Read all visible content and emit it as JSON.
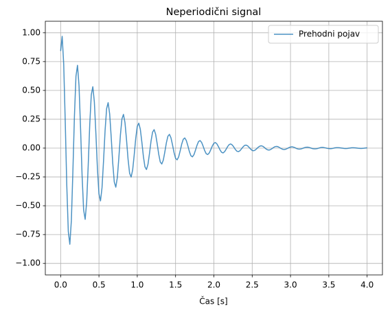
{
  "chart_data": {
    "type": "line",
    "title": "Neperiodični signal",
    "xlabel": "Čas [s]",
    "x": [
      0,
      0.02,
      0.04,
      0.06,
      0.08,
      0.1,
      0.12,
      0.14,
      0.16,
      0.18,
      0.2,
      0.22,
      0.24,
      0.26,
      0.28,
      0.3,
      0.32,
      0.34,
      0.36,
      0.38,
      0.4,
      0.42,
      0.44,
      0.46,
      0.48,
      0.5,
      0.52,
      0.54,
      0.56,
      0.58,
      0.6,
      0.62,
      0.64,
      0.66,
      0.68,
      0.7,
      0.72,
      0.74,
      0.76,
      0.78,
      0.8,
      0.82,
      0.84,
      0.86,
      0.88,
      0.9,
      0.92,
      0.94,
      0.96,
      0.98,
      1,
      1.02,
      1.04,
      1.06,
      1.08,
      1.1,
      1.12,
      1.14,
      1.16,
      1.18,
      1.2,
      1.22,
      1.24,
      1.26,
      1.28,
      1.3,
      1.32,
      1.34,
      1.36,
      1.38,
      1.4,
      1.42,
      1.44,
      1.46,
      1.48,
      1.5,
      1.52,
      1.54,
      1.56,
      1.58,
      1.6,
      1.62,
      1.64,
      1.66,
      1.68,
      1.7,
      1.72,
      1.74,
      1.76,
      1.78,
      1.8,
      1.82,
      1.84,
      1.86,
      1.88,
      1.9,
      1.92,
      1.94,
      1.96,
      1.98,
      2,
      2.02,
      2.04,
      2.06,
      2.08,
      2.1,
      2.12,
      2.14,
      2.16,
      2.18,
      2.2,
      2.22,
      2.24,
      2.26,
      2.28,
      2.3,
      2.32,
      2.34,
      2.36,
      2.38,
      2.4,
      2.42,
      2.44,
      2.46,
      2.48,
      2.5,
      2.52,
      2.54,
      2.56,
      2.58,
      2.6,
      2.62,
      2.64,
      2.66,
      2.68,
      2.7,
      2.72,
      2.74,
      2.76,
      2.78,
      2.8,
      2.82,
      2.84,
      2.86,
      2.88,
      2.9,
      2.92,
      2.94,
      2.96,
      2.98,
      3,
      3.02,
      3.04,
      3.06,
      3.08,
      3.1,
      3.12,
      3.14,
      3.16,
      3.18,
      3.2,
      3.22,
      3.24,
      3.26,
      3.28,
      3.3,
      3.32,
      3.34,
      3.36,
      3.38,
      3.4,
      3.42,
      3.44,
      3.46,
      3.48,
      3.5,
      3.52,
      3.54,
      3.56,
      3.58,
      3.6,
      3.62,
      3.64,
      3.66,
      3.68,
      3.7,
      3.72,
      3.74,
      3.76,
      3.78,
      3.8,
      3.82,
      3.84,
      3.86,
      3.88,
      3.9,
      3.92,
      3.94,
      3.96,
      3.98,
      4
    ],
    "series": [
      {
        "name": "Prehodni pojav",
        "color": "#1f77b4",
        "values": [
          0.842,
          0.969,
          0.729,
          0.232,
          -0.322,
          -0.724,
          -0.834,
          -0.627,
          -0.2,
          0.277,
          0.623,
          0.718,
          0.54,
          0.172,
          -0.239,
          -0.537,
          -0.618,
          -0.465,
          -0.148,
          0.205,
          0.462,
          0.532,
          0.4,
          0.127,
          -0.177,
          -0.397,
          -0.458,
          -0.344,
          -0.11,
          0.152,
          0.342,
          0.394,
          0.296,
          0.094,
          -0.131,
          -0.294,
          -0.339,
          -0.255,
          -0.081,
          0.113,
          0.253,
          0.292,
          0.22,
          0.07,
          -0.097,
          -0.218,
          -0.251,
          -0.189,
          -0.06,
          0.084,
          0.188,
          0.216,
          0.163,
          0.052,
          -0.072,
          -0.162,
          -0.186,
          -0.14,
          -0.045,
          0.062,
          0.139,
          0.16,
          0.12,
          0.038,
          -0.053,
          -0.12,
          -0.138,
          -0.104,
          -0.033,
          0.046,
          0.103,
          0.119,
          0.089,
          0.028,
          -0.039,
          -0.089,
          -0.102,
          -0.077,
          -0.024,
          0.034,
          0.076,
          0.088,
          0.066,
          0.021,
          -0.029,
          -0.066,
          -0.076,
          -0.057,
          -0.018,
          0.025,
          0.057,
          0.065,
          0.049,
          0.016,
          -0.022,
          -0.049,
          -0.056,
          -0.042,
          -0.013,
          0.019,
          0.042,
          0.048,
          0.036,
          0.012,
          -0.016,
          -0.036,
          -0.042,
          -0.031,
          -0.01,
          0.014,
          0.031,
          0.036,
          0.027,
          0.009,
          -0.012,
          -0.027,
          -0.031,
          -0.023,
          -0.007,
          0.01,
          0.023,
          0.026,
          0.02,
          0.006,
          -0.009,
          -0.02,
          -0.023,
          -0.017,
          -0.005,
          0.008,
          0.017,
          0.02,
          0.015,
          0.005,
          -0.007,
          -0.015,
          -0.017,
          -0.013,
          -0.004,
          0.006,
          0.013,
          0.015,
          0.011,
          0.003,
          -0.005,
          -0.011,
          -0.013,
          -0.009,
          -0.003,
          0.004,
          0.009,
          0.011,
          0.008,
          0.003,
          -0.004,
          -0.008,
          -0.009,
          -0.007,
          -0.002,
          0.003,
          0.007,
          0.008,
          0.006,
          0.002,
          -0.003,
          -0.006,
          -0.007,
          -0.005,
          -0.002,
          0.002,
          0.005,
          0.006,
          0.004,
          0.001,
          -0.002,
          -0.004,
          -0.005,
          -0.004,
          -0.001,
          0.002,
          0.004,
          0.004,
          0.003,
          0.001,
          -0.001,
          -0.003,
          -0.004,
          -0.003,
          -0.001,
          0.001,
          0.003,
          0.003,
          0.002,
          0.001,
          -0.001,
          -0.002,
          -0.003,
          -0.002,
          -0.001,
          0.001,
          0.002
        ]
      }
    ],
    "xlim": [
      -0.2,
      4.2
    ],
    "xticks": [
      {
        "value": 0,
        "label": "0.0"
      },
      {
        "value": 0.5,
        "label": "0.5"
      },
      {
        "value": 1,
        "label": "1.0"
      },
      {
        "value": 1.5,
        "label": "1.5"
      },
      {
        "value": 2,
        "label": "2.0"
      },
      {
        "value": 2.5,
        "label": "2.5"
      },
      {
        "value": 3,
        "label": "3.0"
      },
      {
        "value": 3.5,
        "label": "3.5"
      },
      {
        "value": 4,
        "label": "4.0"
      }
    ],
    "ylim": [
      -1.1,
      1.1
    ],
    "yticks": [
      {
        "value": -1,
        "label": "−1.00"
      },
      {
        "value": -0.75,
        "label": "−0.75"
      },
      {
        "value": -0.5,
        "label": "−0.50"
      },
      {
        "value": -0.25,
        "label": "−0.25"
      },
      {
        "value": 0,
        "label": "0.00"
      },
      {
        "value": 0.25,
        "label": "0.25"
      },
      {
        "value": 0.5,
        "label": "0.50"
      },
      {
        "value": 0.75,
        "label": "0.75"
      },
      {
        "value": 1,
        "label": "1.00"
      }
    ],
    "grid": true,
    "legend": "upper right"
  }
}
